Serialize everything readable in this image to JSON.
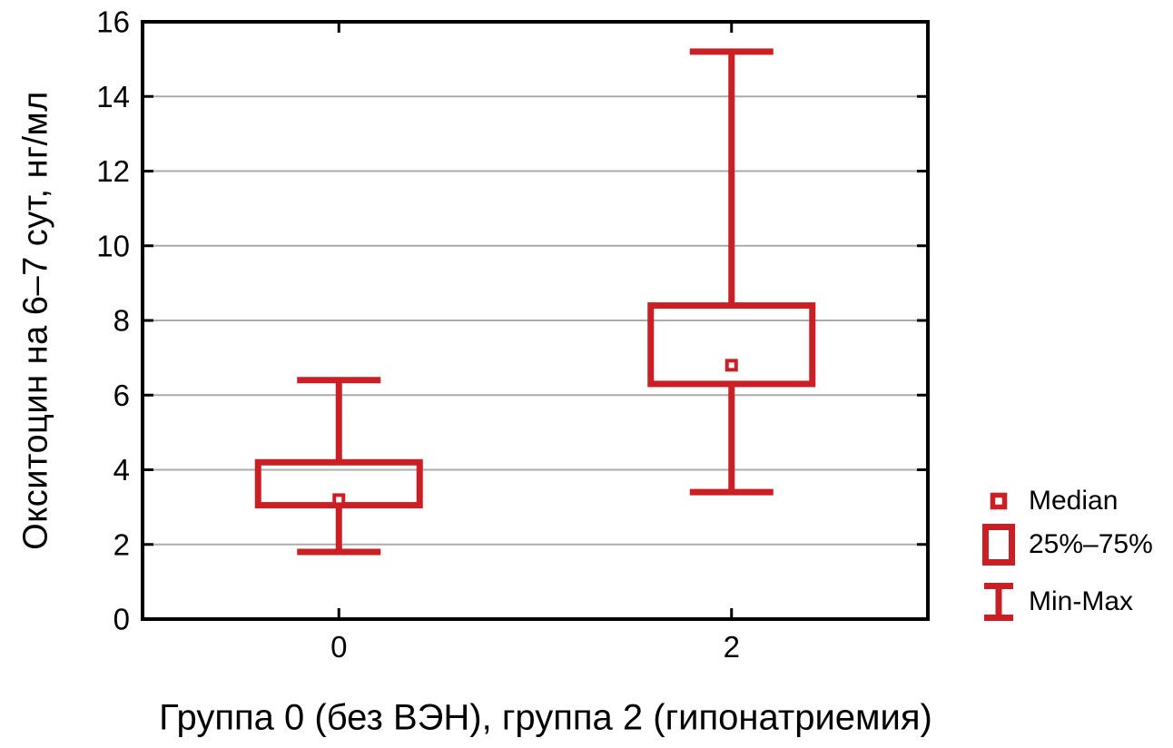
{
  "chart_data": {
    "type": "boxplot",
    "title": "",
    "xlabel": "Группа 0 (без ВЭН), группа 2 (гипонатриемия)",
    "ylabel": "Окситоцин на 6–7 сут, нг/мл",
    "ylim": [
      0,
      16
    ],
    "yticks": [
      0,
      2,
      4,
      6,
      8,
      10,
      12,
      14,
      16
    ],
    "grid": "horizontal",
    "legend_position": "right",
    "categories": [
      "0",
      "2"
    ],
    "series": [
      {
        "category": "0",
        "min": 1.8,
        "q1": 3.05,
        "median": 3.2,
        "q3": 4.2,
        "max": 6.4
      },
      {
        "category": "2",
        "min": 3.4,
        "q1": 6.3,
        "median": 6.8,
        "q3": 8.4,
        "max": 15.2
      }
    ],
    "legend": [
      {
        "marker": "median-square",
        "label": "Median"
      },
      {
        "marker": "box",
        "label": "25%–75%"
      },
      {
        "marker": "min-max-whisker",
        "label": "Min-Max"
      }
    ],
    "colors": {
      "box": "#C91F25",
      "grid": "#ABABAB",
      "axis": "#000000",
      "text": "#000000",
      "background": "#FFFFFF"
    }
  }
}
